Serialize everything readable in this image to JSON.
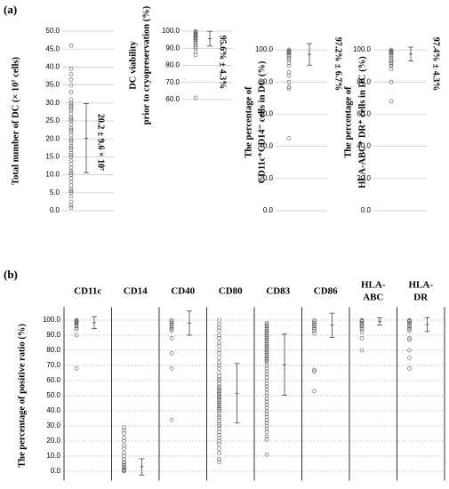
{
  "chart_data": [
    {
      "type": "strip",
      "panel_label": "(a)",
      "ylabel": [
        "Total number of DC (× 10⁷ cells)"
      ],
      "ylim": [
        0,
        50
      ],
      "yticks": [
        {
          "value": 0,
          "label": "0.0"
        },
        {
          "value": 5,
          "label": "5.0"
        },
        {
          "value": 10,
          "label": "10.0"
        },
        {
          "value": 15,
          "label": "15.0"
        },
        {
          "value": 20,
          "label": "20.0"
        },
        {
          "value": 25,
          "label": "25.0"
        },
        {
          "value": 30,
          "label": "30.0"
        },
        {
          "value": 35,
          "label": "35.0"
        },
        {
          "value": 40,
          "label": "40.0"
        },
        {
          "value": 45,
          "label": "45.0"
        },
        {
          "value": 50,
          "label": "50.0"
        }
      ],
      "values": [
        46,
        39.5,
        38,
        36.5,
        35,
        33,
        31,
        30,
        29.5,
        29,
        28.5,
        28,
        27,
        26,
        25.5,
        25,
        24,
        23,
        22.5,
        22,
        21,
        20,
        19.5,
        19,
        18,
        17.5,
        17,
        16,
        15.5,
        15,
        14,
        13,
        12,
        11,
        10.5,
        10,
        9,
        8,
        7,
        6,
        5.5,
        5,
        4,
        2.5,
        1.5,
        0.8
      ],
      "mean": 20.2,
      "sd": 9.6,
      "annotation": "20.2 ± 9.6 × 10⁷",
      "grid": true
    },
    {
      "type": "strip",
      "ylabel": [
        "DC viability",
        "prior to cryopreservation (%)"
      ],
      "ylim": [
        60,
        100
      ],
      "yticks": [
        {
          "value": 60,
          "label": "60.0"
        },
        {
          "value": 70,
          "label": "70.0"
        },
        {
          "value": 80,
          "label": "80.0"
        },
        {
          "value": 90,
          "label": "90.0"
        },
        {
          "value": 100,
          "label": "100.0"
        }
      ],
      "values": [
        100,
        99.5,
        99,
        98.5,
        98,
        97.5,
        97,
        96.5,
        96,
        95.5,
        95,
        94,
        93,
        92,
        91,
        90,
        88,
        86,
        61
      ],
      "mean": 95.6,
      "sd": 4.3,
      "annotation": "95.6% ± 4.3%",
      "grid": true
    },
    {
      "type": "strip",
      "ylabel": [
        "The percentage of",
        "CD11c⁺CD14⁻ cells in DC (%)"
      ],
      "ylim": [
        0,
        110
      ],
      "yticks": [
        {
          "value": 0,
          "label": "0.0"
        },
        {
          "value": 20,
          "label": "20.0"
        },
        {
          "value": 40,
          "label": "40.0"
        },
        {
          "value": 60,
          "label": "60.0"
        },
        {
          "value": 80,
          "label": "80.0"
        },
        {
          "value": 100,
          "label": "100.0"
        }
      ],
      "values": [
        100,
        99.5,
        99,
        98.5,
        98,
        97,
        96,
        95,
        94,
        92,
        90,
        86,
        84,
        80,
        77,
        76,
        45
      ],
      "mean": 97.2,
      "sd": 6.7,
      "annotation": "97.2% ± 6.7%",
      "grid": true
    },
    {
      "type": "strip",
      "ylabel": [
        "The percentage of",
        "HLA-ABC⁺ DR⁺ cells in DC (%)"
      ],
      "ylim": [
        0,
        110
      ],
      "yticks": [
        {
          "value": 0,
          "label": "0.0"
        },
        {
          "value": 20,
          "label": "20.0"
        },
        {
          "value": 40,
          "label": "40.0"
        },
        {
          "value": 60,
          "label": "60.0"
        },
        {
          "value": 80,
          "label": "80.0"
        },
        {
          "value": 100,
          "label": "100.0"
        }
      ],
      "values": [
        100,
        99.5,
        99,
        98.5,
        98,
        97,
        96,
        95,
        94,
        93,
        92,
        91,
        90,
        88,
        80,
        68
      ],
      "mean": 97.4,
      "sd": 4.3,
      "annotation": "97.4% ± 4.3%",
      "grid": true
    },
    {
      "type": "multi-strip",
      "panel_label": "(b)",
      "ylabel": [
        "The percentage of positive ratio (%)"
      ],
      "ylim": [
        -5,
        105
      ],
      "yticks": [
        {
          "value": 0,
          "label": "0.0"
        },
        {
          "value": 10,
          "label": "10.0"
        },
        {
          "value": 20,
          "label": "20.0"
        },
        {
          "value": 30,
          "label": "30.0"
        },
        {
          "value": 40,
          "label": "40.0"
        },
        {
          "value": 50,
          "label": "50.0"
        },
        {
          "value": 60,
          "label": "60.0"
        },
        {
          "value": 70,
          "label": "70.0"
        },
        {
          "value": 80,
          "label": "80.0"
        },
        {
          "value": 90,
          "label": "90.0"
        },
        {
          "value": 100,
          "label": "100.0"
        }
      ],
      "grid": true,
      "groups": [
        {
          "name": [
            "CD11c"
          ],
          "values": [
            100,
            99.5,
            99,
            98.5,
            98,
            97,
            96,
            95,
            94,
            90,
            68
          ],
          "mean": 98.3,
          "sd": 4.0
        },
        {
          "name": [
            "CD14"
          ],
          "values": [
            29,
            27,
            25,
            22,
            20,
            17,
            15,
            12,
            10,
            8,
            6,
            5,
            4,
            3,
            2,
            1,
            0.5,
            0
          ],
          "mean": 2.9,
          "sd": 5.4
        },
        {
          "name": [
            "CD40"
          ],
          "values": [
            100,
            99,
            98,
            97,
            96,
            95,
            94,
            93,
            88,
            78,
            68,
            34
          ],
          "mean": 98,
          "sd": 8
        },
        {
          "name": [
            "CD80"
          ],
          "values": [
            100,
            97,
            95,
            93,
            90,
            88,
            85,
            83,
            80,
            78,
            75,
            72,
            70,
            68,
            65,
            63,
            61,
            60,
            58,
            56,
            55,
            54,
            53,
            52,
            51,
            50,
            49,
            48,
            47,
            46,
            45,
            44,
            43,
            42,
            41,
            40,
            38,
            36,
            35,
            33,
            31,
            30,
            28,
            26,
            24,
            22,
            20,
            18,
            15,
            12,
            8,
            6
          ],
          "mean": 51.6,
          "sd": 19.7
        },
        {
          "name": [
            "CD83"
          ],
          "values": [
            98,
            97,
            96,
            95,
            94,
            93,
            92,
            91,
            90,
            89,
            88,
            87,
            86,
            85,
            84,
            83,
            82,
            81,
            80,
            79,
            78,
            77,
            76,
            75,
            74,
            73,
            72,
            70,
            68,
            66,
            64,
            62,
            60,
            58,
            56,
            54,
            52,
            50,
            48,
            46,
            44,
            42,
            40,
            38,
            36,
            34,
            32,
            30,
            28,
            26,
            23,
            21,
            11
          ],
          "mean": 70.5,
          "sd": 20.2
        },
        {
          "name": [
            "CD86"
          ],
          "values": [
            100,
            99,
            98,
            97,
            96,
            95,
            94,
            93,
            91,
            67,
            66,
            53
          ],
          "mean": 96.6,
          "sd": 8
        },
        {
          "name": [
            "HLA-",
            "ABC"
          ],
          "values": [
            100,
            99.5,
            99,
            98,
            97,
            96,
            95,
            94,
            92,
            88,
            80
          ],
          "mean": 99,
          "sd": 2.4
        },
        {
          "name": [
            "HLA-",
            "DR"
          ],
          "values": [
            100,
            99.5,
            99,
            98,
            97,
            96,
            95,
            94,
            93,
            88,
            87,
            80,
            75,
            68
          ],
          "mean": 97,
          "sd": 4.6
        }
      ]
    }
  ]
}
